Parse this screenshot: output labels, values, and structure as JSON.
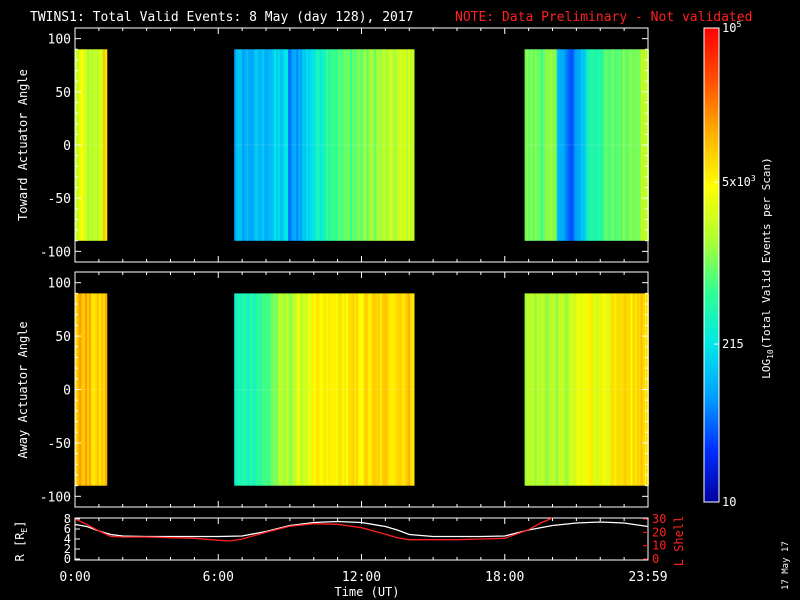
{
  "header": {
    "title": "TWINS1: Total Valid Events:  8 May (day 128), 2017",
    "note": "NOTE: Data Preliminary - Not validated",
    "note_color": "#ff2020"
  },
  "footer": {
    "date_stamp": "17 May 17"
  },
  "chart_data": [
    {
      "type": "heatmap",
      "ylabel": "Toward Actuator Angle",
      "ylim": [
        -110,
        110
      ],
      "yticks": [
        100,
        50,
        0,
        -50,
        -100
      ],
      "y_tick_labels": [
        "100",
        "50",
        "0",
        "-50",
        "-100"
      ],
      "angle_range": [
        -90,
        90
      ],
      "xlim_hours": [
        0,
        24
      ],
      "data_intervals_ut": [
        {
          "start": "0:00",
          "end": "1:20",
          "start_h": 0.0,
          "end_h": 1.33,
          "level": "green-yellow, orange edge"
        },
        {
          "start": "6:40",
          "end": "14:10",
          "start_h": 6.67,
          "end_h": 14.17,
          "level": "blue to yellow"
        },
        {
          "start": "18:50",
          "end": "23:59",
          "start_h": 18.83,
          "end_h": 24.0,
          "level": "blue/cyan to yellow"
        }
      ]
    },
    {
      "type": "heatmap",
      "ylabel": "Away Actuator Angle",
      "ylim": [
        -110,
        110
      ],
      "yticks": [
        100,
        50,
        0,
        -50,
        -100
      ],
      "y_tick_labels": [
        "100",
        "50",
        "0",
        "-50",
        "-100"
      ],
      "angle_range": [
        -90,
        90
      ],
      "xlim_hours": [
        0,
        24
      ],
      "data_intervals_ut": [
        {
          "start": "0:00",
          "end": "1:20",
          "start_h": 0.0,
          "end_h": 1.33,
          "level": "orange"
        },
        {
          "start": "6:40",
          "end": "14:10",
          "start_h": 6.67,
          "end_h": 14.17,
          "level": "cyan to orange"
        },
        {
          "start": "18:50",
          "end": "23:59",
          "start_h": 18.83,
          "end_h": 24.0,
          "level": "yellow-green to orange"
        }
      ]
    },
    {
      "type": "line",
      "ylabel_left": "R [R",
      "ylabel_left_sub": "E",
      "ylabel_left_close": "]",
      "ylabel_right": "L Shell",
      "left_ticks": [
        "8",
        "6",
        "4",
        "2",
        "0"
      ],
      "left_ylim": [
        0,
        8
      ],
      "right_ticks": [
        "30",
        "20",
        "10",
        "0"
      ],
      "right_ylim": [
        0,
        30
      ],
      "xlabel": "Time (UT)",
      "x_tick_labels": [
        "0:00",
        "6:00",
        "12:00",
        "18:00",
        "23:59"
      ],
      "x_tick_hours": [
        0,
        6,
        12,
        18,
        24
      ],
      "series": [
        {
          "name": "R",
          "color": "#ffffff",
          "x": [
            0,
            0.5,
            1,
            1.5,
            2,
            3,
            4,
            5,
            6,
            7,
            8,
            9,
            10,
            11,
            12,
            13,
            13.5,
            14,
            15,
            16,
            17,
            18,
            19,
            20,
            21,
            22,
            23,
            24
          ],
          "y": [
            6.9,
            6.5,
            5.6,
            4.9,
            4.6,
            4.5,
            4.5,
            4.5,
            4.5,
            4.6,
            5.5,
            6.7,
            7.3,
            7.5,
            7.3,
            6.5,
            5.8,
            4.9,
            4.5,
            4.5,
            4.5,
            4.6,
            5.8,
            6.7,
            7.2,
            7.4,
            7.2,
            6.5
          ]
        },
        {
          "name": "L Shell",
          "color": "#ff2020",
          "x": [
            0,
            0.5,
            1,
            1.5,
            2,
            3,
            4,
            5,
            6,
            6.5,
            7,
            8,
            9,
            10,
            11,
            12,
            13,
            13.5,
            14,
            15,
            16,
            17,
            18,
            19,
            19.5,
            20
          ],
          "y": [
            30,
            26,
            21,
            17,
            16.5,
            16.5,
            16,
            15.5,
            14,
            13.5,
            15,
            20,
            24.5,
            26.5,
            26,
            23.5,
            18.5,
            16,
            14.5,
            14.5,
            14.5,
            15,
            15.5,
            22,
            27,
            31
          ]
        }
      ]
    }
  ],
  "colorbar": {
    "label": "LOG",
    "label_sub": "10",
    "label_rest": "(Total Valid Events per Scan)",
    "tick_labels": [
      {
        "text": "10",
        "value": 10
      },
      {
        "text": "215",
        "value": 215
      },
      {
        "text": "5x10",
        "sup": "3",
        "value": 5000
      },
      {
        "text": "10",
        "sup": "5",
        "value": 100000
      }
    ],
    "range": [
      10,
      100000
    ],
    "colors": [
      "#0000a0",
      "#0030ff",
      "#00a0ff",
      "#00e8e8",
      "#30ff90",
      "#b0ff30",
      "#ffff00",
      "#ffb000",
      "#ff5000",
      "#ff0000"
    ]
  }
}
